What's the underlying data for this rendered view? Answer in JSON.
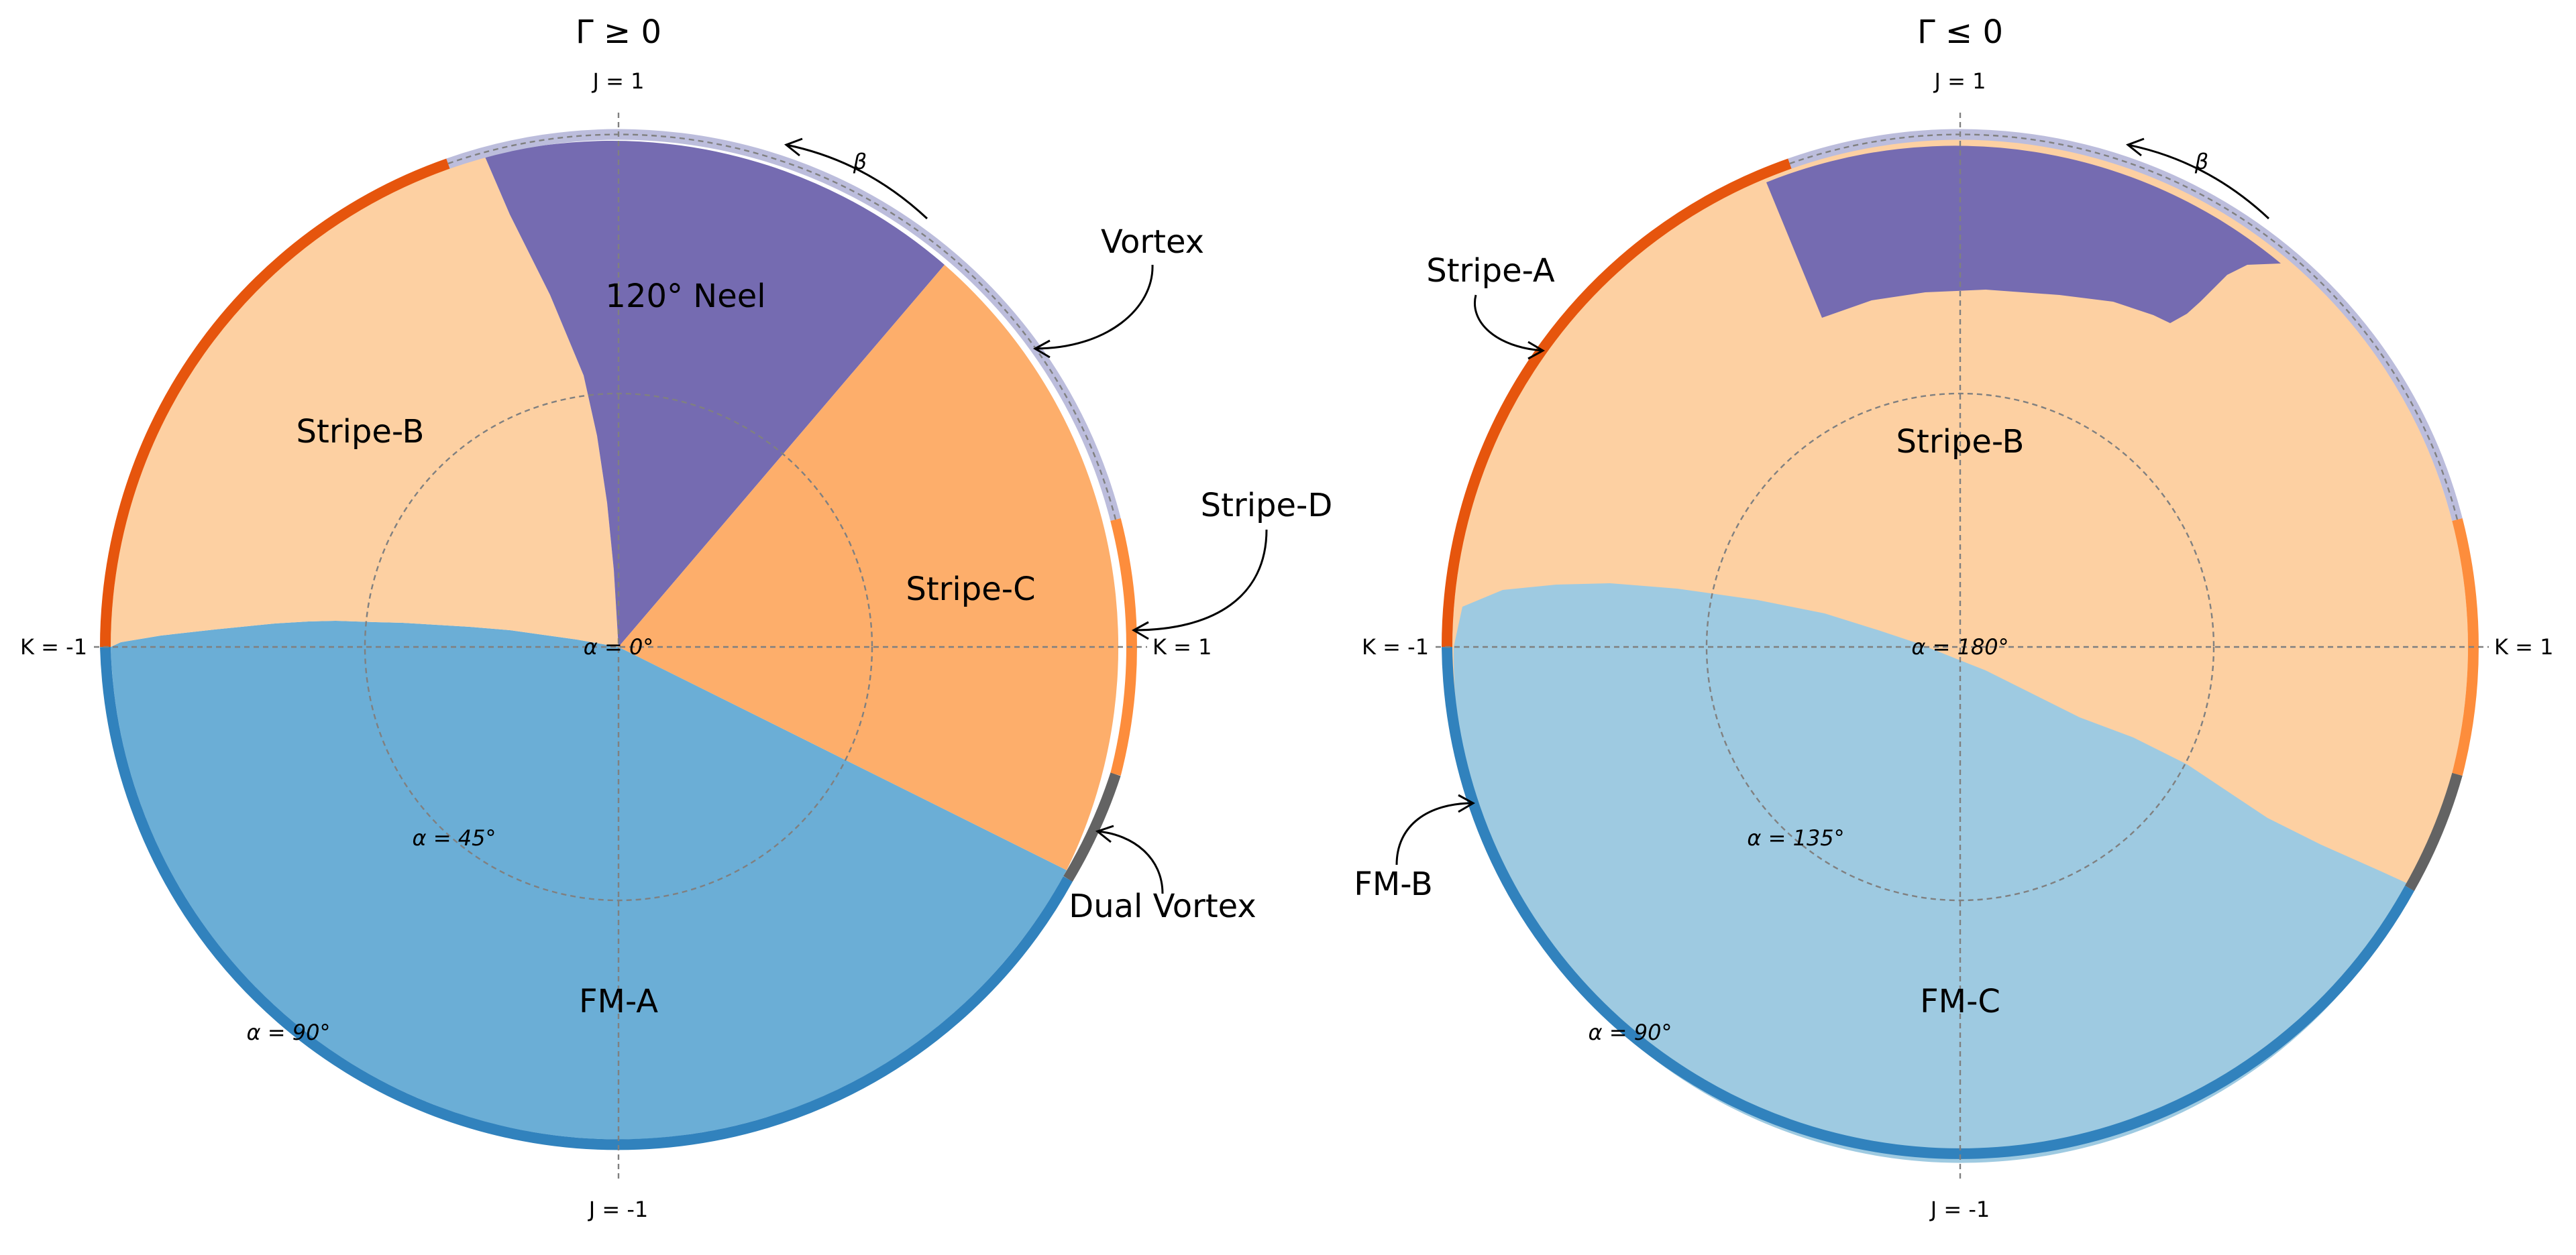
{
  "panels": [
    {
      "title": "Γ ≥ 0",
      "axis_labels": {
        "top": "J = 1",
        "bottom": "J = -1",
        "left": "K = -1",
        "right": "K = 1"
      },
      "alpha_labels": {
        "center": "α = 0°",
        "inner": "α = 45°",
        "outer": "α = 90°"
      },
      "beta_label": "β",
      "regions": {
        "fm": "FM-A",
        "stripe_b": "Stripe-B",
        "neel": "120° Neel",
        "stripe_c": "Stripe-C"
      },
      "boundary_labels": {
        "vortex": "Vortex",
        "stripe_d": "Stripe-D",
        "dual_vortex": "Dual Vortex"
      }
    },
    {
      "title": "Γ ≤ 0",
      "axis_labels": {
        "top": "J = 1",
        "bottom": "J = -1",
        "left": "K = -1",
        "right": "K = 1"
      },
      "alpha_labels": {
        "center": "α = 180°",
        "inner": "α = 135°",
        "outer": "α = 90°"
      },
      "beta_label": "β",
      "regions": {
        "stripe_b": "Stripe-B",
        "fm": "FM-C"
      },
      "boundary_labels": {
        "stripe_a": "Stripe-A",
        "fm_b": "FM-B"
      }
    }
  ],
  "colors": {
    "fm_a": "#6baed6",
    "fm_c": "#9ecae1",
    "stripe_b": "#fdd0a2",
    "stripe_c": "#fdae6b",
    "neel": "#756bb1",
    "ring_vortex": "#bcbddc",
    "ring_stripe_a": "#e6550d",
    "ring_stripe_d": "#fd8d3c",
    "ring_dual_vortex": "#636363",
    "ring_fm_b": "#3182bd"
  }
}
